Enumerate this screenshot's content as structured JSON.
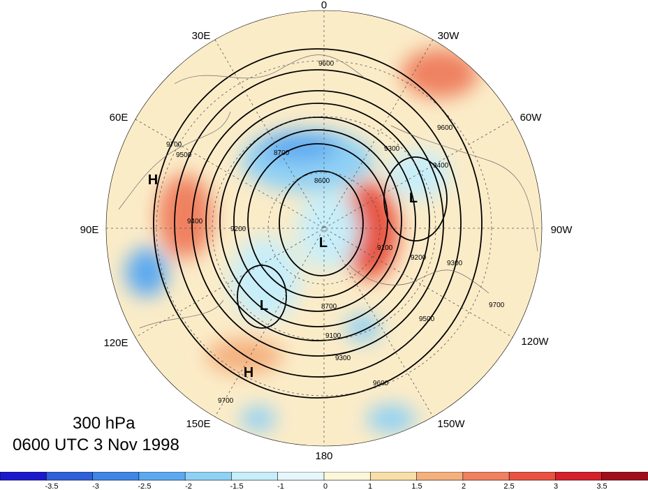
{
  "map": {
    "level": "300 hPa",
    "time": "0600 UTC 3 Nov 1998",
    "longitude_labels": [
      "0",
      "30W",
      "60W",
      "90W",
      "120W",
      "150W",
      "180",
      "150E",
      "120E",
      "90E",
      "60E",
      "30E"
    ],
    "pressure_centers": [
      "H",
      "H",
      "L",
      "L",
      "L"
    ],
    "contour_labels": [
      "9600",
      "9500",
      "9400",
      "9300",
      "9200",
      "9100",
      "8700",
      "8600",
      "9700",
      "9400",
      "9500",
      "9300",
      "9600",
      "9700",
      "9300",
      "9200",
      "9100",
      "8700",
      "9600",
      "9700"
    ]
  },
  "colorbar": {
    "ticks": [
      "-3.5",
      "-3",
      "-2.5",
      "-2",
      "-1.5",
      "-1",
      "0",
      "1",
      "1.5",
      "2",
      "2.5",
      "3",
      "3.5"
    ],
    "colors": [
      "#1a1acc",
      "#2f5fd9",
      "#3f86e6",
      "#5ca9f0",
      "#8fd0f5",
      "#c7eef9",
      "#e6f7fb",
      "#fdf7d9",
      "#f8dfa8",
      "#f4b07f",
      "#ef8160",
      "#e85240",
      "#d4212a",
      "#a0101c"
    ]
  }
}
